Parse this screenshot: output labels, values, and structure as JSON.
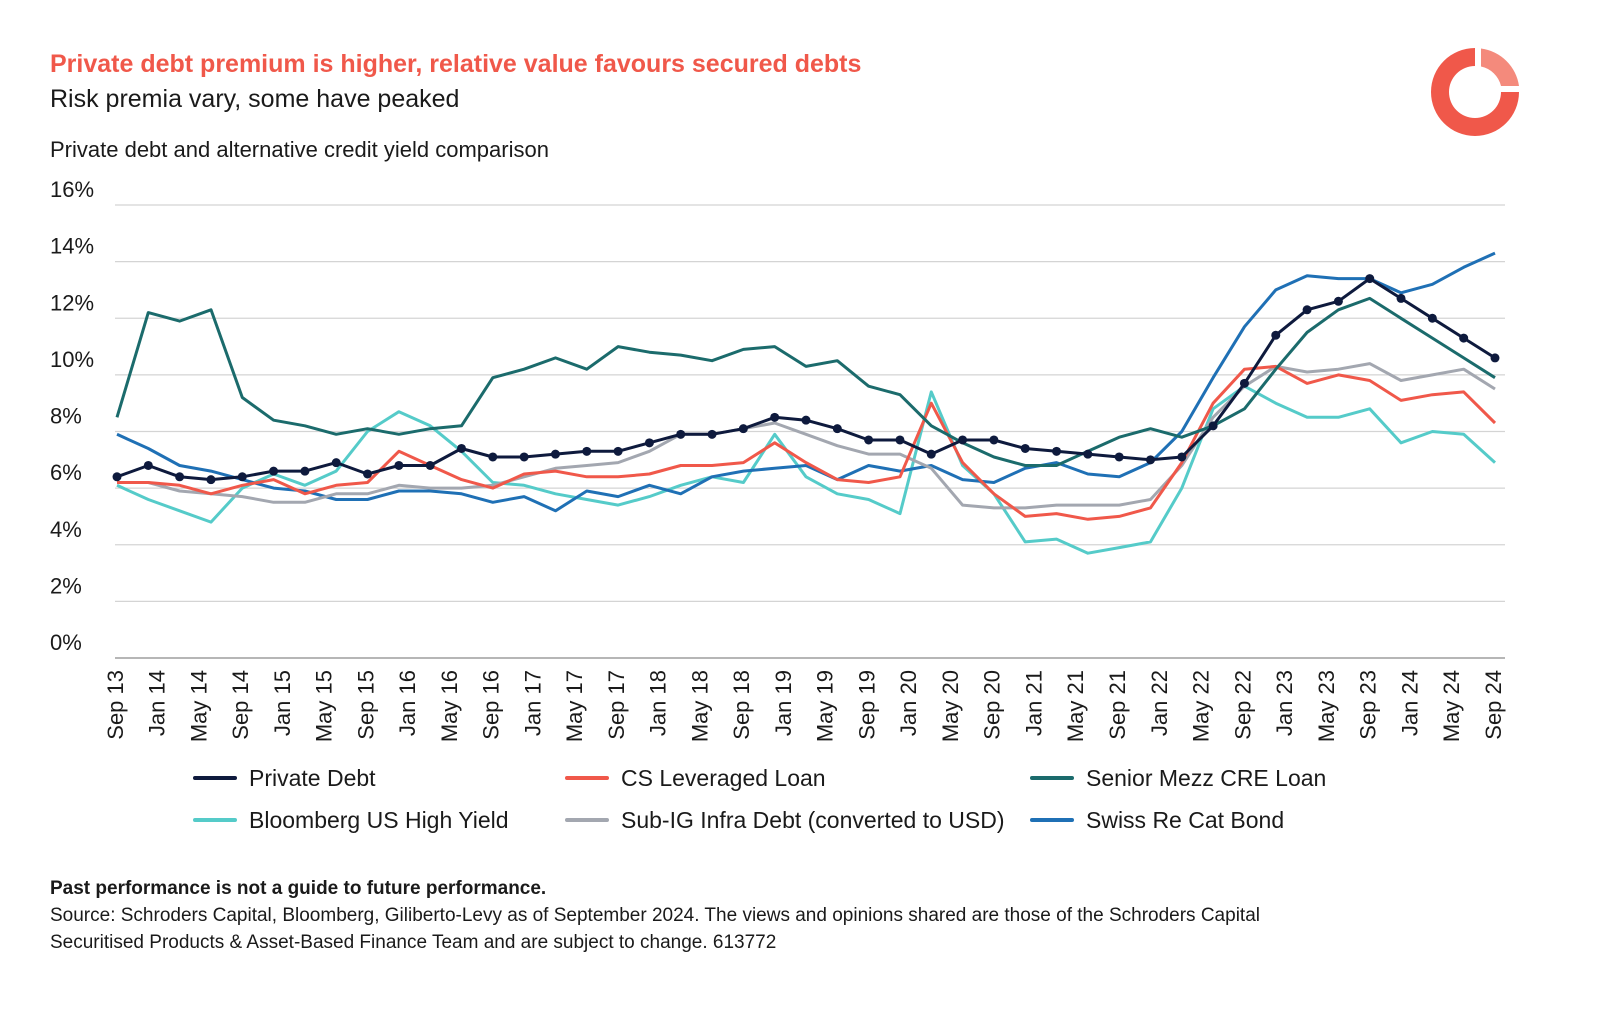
{
  "chart_data": {
    "type": "line",
    "title": "Private debt premium is higher, relative value favours secured debts",
    "subtitle": "Risk premia vary, some have peaked",
    "y_axis_title": "Private debt and alternative credit yield comparison",
    "x": [
      "Sep 13",
      "Dec 13",
      "Mar 14",
      "Jun 14",
      "Sep 14",
      "Dec 14",
      "Mar 15",
      "Jun 15",
      "Sep 15",
      "Dec 15",
      "Mar 16",
      "Jun 16",
      "Sep 16",
      "Dec 16",
      "Mar 17",
      "Jun 17",
      "Sep 17",
      "Dec 17",
      "Mar 18",
      "Jun 18",
      "Sep 18",
      "Dec 18",
      "Mar 19",
      "Jun 19",
      "Sep 19",
      "Dec 19",
      "Mar 20",
      "Jun 20",
      "Sep 20",
      "Dec 20",
      "Mar 21",
      "Jun 21",
      "Sep 21",
      "Dec 21",
      "Mar 22",
      "Jun 22",
      "Sep 22",
      "Dec 22",
      "Mar 23",
      "Jun 23",
      "Sep 23",
      "Dec 23",
      "Mar 24",
      "Jun 24",
      "Sep 24"
    ],
    "xticks": [
      "Sep 13",
      "Jan 14",
      "May 14",
      "Sep 14",
      "Jan 15",
      "May 15",
      "Sep 15",
      "Jan 16",
      "May 16",
      "Sep 16",
      "Jan 17",
      "May 17",
      "Sep 17",
      "Jan 18",
      "May 18",
      "Sep 18",
      "Jan 19",
      "May 19",
      "Sep 19",
      "Jan 20",
      "May 20",
      "Sep 20",
      "Jan 21",
      "May 21",
      "Sep 21",
      "Jan 22",
      "May 22",
      "Sep 22",
      "Jan 23",
      "May 23",
      "Sep 23",
      "Jan 24",
      "May 24",
      "Sep 24"
    ],
    "ylim": [
      0,
      16
    ],
    "yticks": [
      {
        "value": 0,
        "label": "0%"
      },
      {
        "value": 2,
        "label": "2%"
      },
      {
        "value": 4,
        "label": "4%"
      },
      {
        "value": 6,
        "label": "6%"
      },
      {
        "value": 8,
        "label": "8%"
      },
      {
        "value": 10,
        "label": "10%"
      },
      {
        "value": 12,
        "label": "12%"
      },
      {
        "value": 14,
        "label": "14%"
      },
      {
        "value": 16,
        "label": "16%"
      }
    ],
    "grid": true,
    "legend": "bottom",
    "series": [
      {
        "name": "Private Debt",
        "color": "#0e1a3d",
        "markers": true,
        "values": [
          6.4,
          6.8,
          6.4,
          6.3,
          6.4,
          6.6,
          6.6,
          6.9,
          6.5,
          6.8,
          6.8,
          7.4,
          7.1,
          7.1,
          7.2,
          7.3,
          7.3,
          7.6,
          7.9,
          7.9,
          8.1,
          8.5,
          8.4,
          8.1,
          7.7,
          7.7,
          7.2,
          7.7,
          7.7,
          7.4,
          7.3,
          7.2,
          7.1,
          7.0,
          7.1,
          8.2,
          9.7,
          11.4,
          12.3,
          12.6,
          13.4,
          12.7,
          12.0,
          11.3,
          10.6
        ]
      },
      {
        "name": "CS Leveraged Loan",
        "color": "#f0584a",
        "values": [
          6.2,
          6.2,
          6.1,
          5.8,
          6.1,
          6.3,
          5.8,
          6.1,
          6.2,
          7.3,
          6.8,
          6.3,
          6.0,
          6.5,
          6.6,
          6.4,
          6.4,
          6.5,
          6.8,
          6.8,
          6.9,
          7.6,
          6.9,
          6.3,
          6.2,
          6.4,
          9.0,
          6.9,
          5.8,
          5.0,
          5.1,
          4.9,
          5.0,
          5.3,
          6.9,
          9.0,
          10.2,
          10.3,
          9.7,
          10.0,
          9.8,
          9.1,
          9.3,
          9.4,
          8.3
        ]
      },
      {
        "name": "Senior Mezz CRE Loan",
        "color": "#1b6b6c",
        "values": [
          8.5,
          12.2,
          11.9,
          12.3,
          9.2,
          8.4,
          8.2,
          7.9,
          8.1,
          7.9,
          8.1,
          8.2,
          9.9,
          10.2,
          10.6,
          10.2,
          11.0,
          10.8,
          10.7,
          10.5,
          10.9,
          11.0,
          10.3,
          10.5,
          9.6,
          9.3,
          8.2,
          7.6,
          7.1,
          6.8,
          6.8,
          7.3,
          7.8,
          8.1,
          7.8,
          8.2,
          8.8,
          10.2,
          11.5,
          12.3,
          12.7,
          12.0,
          11.3,
          10.6,
          9.9
        ]
      },
      {
        "name": "Bloomberg US High Yield",
        "color": "#55cbc9",
        "values": [
          6.1,
          5.6,
          5.2,
          4.8,
          6.0,
          6.5,
          6.1,
          6.6,
          8.0,
          8.7,
          8.2,
          7.3,
          6.2,
          6.1,
          5.8,
          5.6,
          5.4,
          5.7,
          6.1,
          6.4,
          6.2,
          7.9,
          6.4,
          5.8,
          5.6,
          5.1,
          9.4,
          6.8,
          5.8,
          4.1,
          4.2,
          3.7,
          3.9,
          4.1,
          6.0,
          8.8,
          9.6,
          9.0,
          8.5,
          8.5,
          8.8,
          7.6,
          8.0,
          7.9,
          6.9
        ]
      },
      {
        "name": "Sub-IG Infra Debt (converted to USD)",
        "color": "#a3a7b0",
        "values": [
          6.2,
          6.2,
          5.9,
          5.8,
          5.7,
          5.5,
          5.5,
          5.8,
          5.8,
          6.1,
          6.0,
          6.0,
          6.1,
          6.4,
          6.7,
          6.8,
          6.9,
          7.3,
          7.9,
          7.9,
          8.1,
          8.3,
          7.9,
          7.5,
          7.2,
          7.2,
          6.7,
          5.4,
          5.3,
          5.3,
          5.4,
          5.4,
          5.4,
          5.6,
          6.8,
          8.5,
          9.6,
          10.3,
          10.1,
          10.2,
          10.4,
          9.8,
          10.0,
          10.2,
          9.5
        ]
      },
      {
        "name": "Swiss Re Cat Bond",
        "color": "#1f70b5",
        "values": [
          7.9,
          7.4,
          6.8,
          6.6,
          6.3,
          6.0,
          5.9,
          5.6,
          5.6,
          5.9,
          5.9,
          5.8,
          5.5,
          5.7,
          5.2,
          5.9,
          5.7,
          6.1,
          5.8,
          6.4,
          6.6,
          6.7,
          6.8,
          6.3,
          6.8,
          6.6,
          6.8,
          6.3,
          6.2,
          6.7,
          6.9,
          6.5,
          6.4,
          6.9,
          8.0,
          9.9,
          11.7,
          13.0,
          13.5,
          13.4,
          13.4,
          12.9,
          13.2,
          13.8,
          14.3
        ]
      }
    ],
    "notes": [
      "Past performance is not a guide to future performance.",
      "Source: Schroders Capital, Bloomberg, Giliberto-Levy as of September 2024. The views and opinions shared are those of the Schroders Capital",
      "Securitised Products & Asset-Based Finance Team and are subject to change. 613772"
    ]
  }
}
